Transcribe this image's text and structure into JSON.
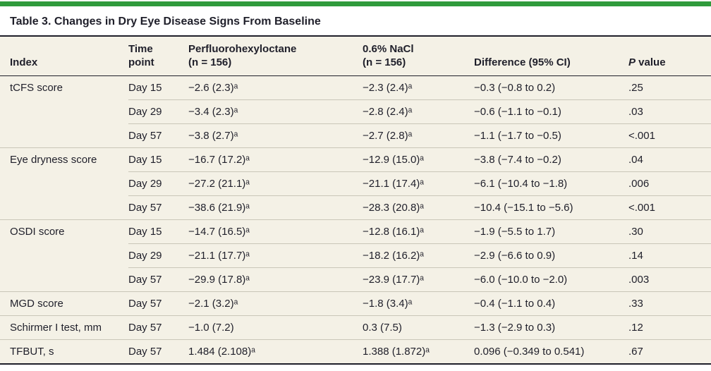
{
  "colors": {
    "accent_green": "#2f9b3c",
    "page_bg": "#ffffff",
    "table_bg": "#f4f1e6",
    "row_line": "#c9c6b8",
    "dark_line": "#1f1f2a",
    "text": "#1f1f2a"
  },
  "title": "Table 3. Changes in Dry Eye Disease Signs From Baseline",
  "table": {
    "columns": {
      "index": "Index",
      "time": {
        "line1": "Time",
        "line2": "point"
      },
      "drug": {
        "line1": "Perfluorohexyloctane",
        "line2": "(n = 156)"
      },
      "control": {
        "line1": "0.6% NaCl",
        "line2": "(n = 156)"
      },
      "difference": "Difference (95% CI)",
      "p": "P value"
    },
    "groups": [
      {
        "index": "tCFS score",
        "rows": [
          {
            "time": "Day 15",
            "drug": "−2.6 (2.3)ᵃ",
            "control": "−2.3 (2.4)ᵃ",
            "diff": "−0.3 (−0.8 to 0.2)",
            "p": ".25"
          },
          {
            "time": "Day 29",
            "drug": "−3.4 (2.3)ᵃ",
            "control": "−2.8 (2.4)ᵃ",
            "diff": "−0.6 (−1.1 to −0.1)",
            "p": ".03"
          },
          {
            "time": "Day 57",
            "drug": "−3.8 (2.7)ᵃ",
            "control": "−2.7 (2.8)ᵃ",
            "diff": "−1.1 (−1.7 to −0.5)",
            "p": "<.001"
          }
        ]
      },
      {
        "index": "Eye dryness score",
        "rows": [
          {
            "time": "Day 15",
            "drug": "−16.7 (17.2)ᵃ",
            "control": "−12.9 (15.0)ᵃ",
            "diff": "−3.8 (−7.4 to −0.2)",
            "p": ".04"
          },
          {
            "time": "Day 29",
            "drug": "−27.2 (21.1)ᵃ",
            "control": "−21.1 (17.4)ᵃ",
            "diff": "−6.1 (−10.4 to −1.8)",
            "p": ".006"
          },
          {
            "time": "Day 57",
            "drug": "−38.6 (21.9)ᵃ",
            "control": "−28.3 (20.8)ᵃ",
            "diff": "−10.4 (−15.1 to −5.6)",
            "p": "<.001"
          }
        ]
      },
      {
        "index": "OSDI score",
        "rows": [
          {
            "time": "Day 15",
            "drug": "−14.7 (16.5)ᵃ",
            "control": "−12.8 (16.1)ᵃ",
            "diff": "−1.9 (−5.5 to 1.7)",
            "p": ".30"
          },
          {
            "time": "Day 29",
            "drug": "−21.1 (17.7)ᵃ",
            "control": "−18.2 (16.2)ᵃ",
            "diff": "−2.9 (−6.6 to 0.9)",
            "p": ".14"
          },
          {
            "time": "Day 57",
            "drug": "−29.9 (17.8)ᵃ",
            "control": "−23.9 (17.7)ᵃ",
            "diff": "−6.0 (−10.0 to −2.0)",
            "p": ".003"
          }
        ]
      },
      {
        "index": "MGD score",
        "rows": [
          {
            "time": "Day 57",
            "drug": "−2.1 (3.2)ᵃ",
            "control": "−1.8 (3.4)ᵃ",
            "diff": "−0.4 (−1.1 to 0.4)",
            "p": ".33"
          }
        ]
      },
      {
        "index": "Schirmer I test, mm",
        "rows": [
          {
            "time": "Day 57",
            "drug": "−1.0 (7.2)",
            "control": "0.3 (7.5)",
            "diff": "−1.3 (−2.9 to 0.3)",
            "p": ".12"
          }
        ]
      },
      {
        "index": "TFBUT, s",
        "rows": [
          {
            "time": "Day 57",
            "drug": "1.484 (2.108)ᵃ",
            "control": "1.388 (1.872)ᵃ",
            "diff": "0.096 (−0.349 to 0.541)",
            "p": ".67"
          }
        ]
      }
    ]
  }
}
